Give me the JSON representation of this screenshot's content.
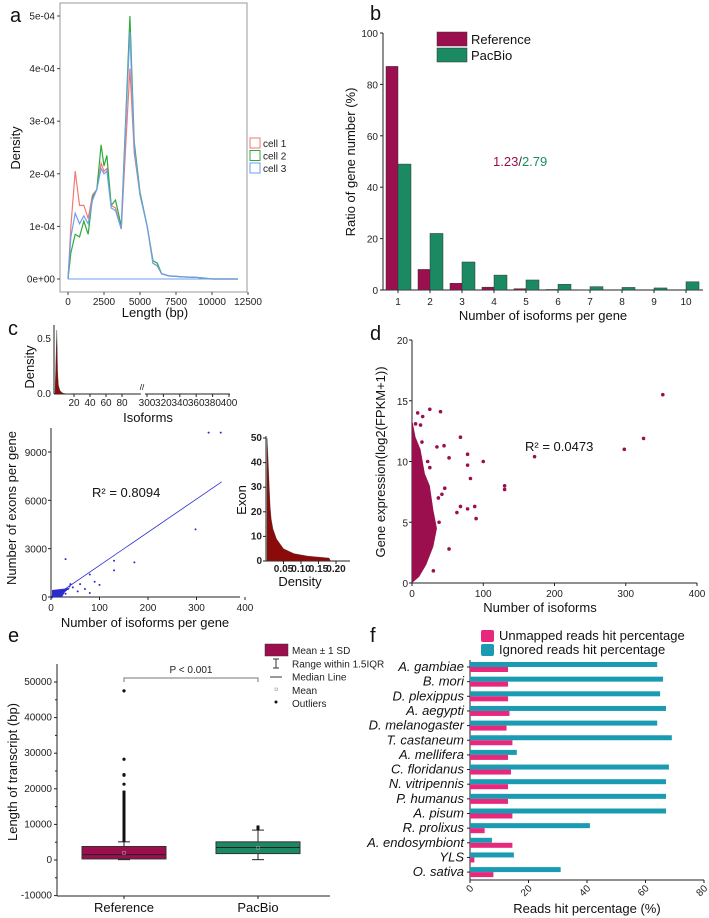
{
  "colors": {
    "reference": "#9c0f4f",
    "pacbio": "#1b8a62",
    "cell1": "#f07a72",
    "cell2": "#2faa3c",
    "cell3": "#6f9ef0",
    "scatter_blue": "#2b2bd0",
    "hist_red": "#8b0a0a",
    "unmapped": "#e8287c",
    "ignored": "#1b9bb2"
  },
  "chart_data": [
    {
      "panel": "a",
      "type": "line",
      "xlabel": "Length (bp)",
      "ylabel": "Density",
      "xlim": [
        0,
        12500
      ],
      "ylim": [
        0,
        0.0005
      ],
      "xticks": [
        "0",
        "2500",
        "5000",
        "7500",
        "10000",
        "12500"
      ],
      "yticks": [
        "0e+00",
        "1e-04",
        "2e-04",
        "3e-04",
        "4e-04",
        "5e-04"
      ],
      "legend_position": "right",
      "series": [
        {
          "name": "cell 1",
          "color": "#f07a72",
          "points": [
            [
              0,
              0
            ],
            [
              200,
              0.0001
            ],
            [
              500,
              0.000205
            ],
            [
              800,
              0.00014
            ],
            [
              1100,
              0.00014
            ],
            [
              1400,
              0.000115
            ],
            [
              1700,
              0.00016
            ],
            [
              2000,
              0.00017
            ],
            [
              2300,
              0.00022
            ],
            [
              2500,
              0.000205
            ],
            [
              2700,
              0.00021
            ],
            [
              3000,
              0.00014
            ],
            [
              3300,
              0.000135
            ],
            [
              3700,
              9.5e-05
            ],
            [
              4000,
              0.00025
            ],
            [
              4300,
              0.0004
            ],
            [
              4600,
              0.00024
            ],
            [
              5000,
              0.00016
            ],
            [
              5500,
              0.0001
            ],
            [
              5900,
              3e-05
            ],
            [
              6200,
              2.5e-05
            ],
            [
              6500,
              1e-05
            ],
            [
              7000,
              6e-06
            ],
            [
              8000,
              4e-06
            ],
            [
              9000,
              3e-06
            ],
            [
              10000,
              0
            ],
            [
              11800,
              0
            ]
          ]
        },
        {
          "name": "cell 2",
          "color": "#2faa3c",
          "points": [
            [
              0,
              0
            ],
            [
              200,
              5e-05
            ],
            [
              500,
              8.5e-05
            ],
            [
              800,
              8e-05
            ],
            [
              1100,
              0.00011
            ],
            [
              1400,
              8.5e-05
            ],
            [
              1700,
              0.000155
            ],
            [
              2000,
              0.00017
            ],
            [
              2300,
              0.000255
            ],
            [
              2500,
              0.000215
            ],
            [
              2700,
              0.000235
            ],
            [
              3000,
              0.00014
            ],
            [
              3300,
              0.00015
            ],
            [
              3700,
              0.0001
            ],
            [
              4000,
              0.0003
            ],
            [
              4300,
              0.0005
            ],
            [
              4600,
              0.00026
            ],
            [
              5000,
              0.000165
            ],
            [
              5500,
              0.0001
            ],
            [
              5900,
              3.5e-05
            ],
            [
              6200,
              3e-05
            ],
            [
              6500,
              1e-05
            ],
            [
              7000,
              6e-06
            ],
            [
              8000,
              4e-06
            ],
            [
              9000,
              3e-06
            ],
            [
              10000,
              0
            ],
            [
              11800,
              0
            ]
          ]
        },
        {
          "name": "cell 3",
          "color": "#6f9ef0",
          "points": [
            [
              0,
              0
            ],
            [
              200,
              8e-05
            ],
            [
              500,
              0.000125
            ],
            [
              800,
              0.000105
            ],
            [
              1100,
              0.00012
            ],
            [
              1400,
              0.000105
            ],
            [
              1700,
              0.00015
            ],
            [
              2000,
              0.00017
            ],
            [
              2300,
              0.00021
            ],
            [
              2500,
              0.0002
            ],
            [
              2700,
              0.000205
            ],
            [
              3000,
              0.000135
            ],
            [
              3300,
              0.00013
            ],
            [
              3700,
              9.5e-05
            ],
            [
              4000,
              0.00029
            ],
            [
              4300,
              0.00047
            ],
            [
              4600,
              0.00025
            ],
            [
              5000,
              0.00016
            ],
            [
              5500,
              0.0001
            ],
            [
              5900,
              3e-05
            ],
            [
              6200,
              2.5e-05
            ],
            [
              6500,
              1e-05
            ],
            [
              7000,
              6e-06
            ],
            [
              8000,
              4e-06
            ],
            [
              9000,
              3e-06
            ],
            [
              10000,
              0
            ],
            [
              11800,
              0
            ]
          ]
        }
      ]
    },
    {
      "panel": "b",
      "type": "bar",
      "xlabel": "Number of isoforms per gene",
      "ylabel": "Ratio of gene number (%)",
      "ylim": [
        0,
        100
      ],
      "yticks": [
        "0",
        "20",
        "40",
        "60",
        "80",
        "100"
      ],
      "categories": [
        "1",
        "2",
        "3",
        "4",
        "5",
        "6",
        "7",
        "8",
        "9",
        "10"
      ],
      "legend_position": "top",
      "annotation_ref": "1.23",
      "annotation_sep": "/",
      "annotation_pacbio": "2.79",
      "series": [
        {
          "name": "Reference",
          "values": [
            87,
            8,
            2.6,
            1.1,
            0.5,
            0.2,
            0.1,
            0,
            0,
            0
          ]
        },
        {
          "name": "PacBio",
          "values": [
            49,
            22,
            10.9,
            5.8,
            3.9,
            2.2,
            1.3,
            1.0,
            0.8,
            3.2
          ]
        }
      ]
    },
    {
      "panel": "c",
      "type": "area",
      "xlabel": "Isoforms",
      "ylabel": "Density",
      "yticks": [
        "0.0",
        "0.5"
      ],
      "xticks_left": [
        "20",
        "40",
        "60",
        "80"
      ],
      "xticks_right": [
        "300",
        "320",
        "340",
        "360",
        "380",
        "400"
      ],
      "axis_break": "//",
      "points": [
        [
          1,
          0.58
        ],
        [
          2,
          0.2
        ],
        [
          3,
          0.08
        ],
        [
          5,
          0.03
        ],
        [
          8,
          0.01
        ],
        [
          10,
          0.005
        ],
        [
          15,
          0
        ]
      ]
    },
    {
      "panel": "c",
      "type": "scatter",
      "xlabel": "Number of isoforms per gene",
      "ylabel": "Number of exons per gene",
      "xlim": [
        0,
        400
      ],
      "ylim": [
        0,
        10500
      ],
      "xticks": [
        "0",
        "100",
        "200",
        "300",
        "400"
      ],
      "yticks": [
        "0",
        "3000",
        "6000",
        "9000"
      ],
      "annotation": "R² = 0.8094",
      "fit_line": [
        [
          0,
          -100
        ],
        [
          352,
          7150
        ]
      ],
      "points": [
        [
          325,
          10200
        ],
        [
          350,
          10200
        ],
        [
          298,
          4200
        ],
        [
          30,
          2350
        ],
        [
          130,
          2250
        ],
        [
          130,
          1650
        ],
        [
          172,
          2150
        ],
        [
          80,
          1400
        ],
        [
          90,
          950
        ],
        [
          100,
          750
        ],
        [
          60,
          800
        ],
        [
          70,
          500
        ],
        [
          80,
          250
        ],
        [
          45,
          600
        ],
        [
          40,
          800
        ],
        [
          55,
          350
        ],
        [
          20,
          400
        ],
        [
          25,
          300
        ],
        [
          15,
          200
        ],
        [
          10,
          150
        ],
        [
          5,
          100
        ],
        [
          30,
          200
        ],
        [
          35,
          500
        ],
        [
          12,
          60
        ],
        [
          3,
          30
        ],
        [
          18,
          120
        ],
        [
          28,
          420
        ],
        [
          38,
          650
        ]
      ]
    },
    {
      "panel": "c",
      "type": "area",
      "xlabel": "Density",
      "ylabel": "Exon",
      "xlim": [
        0,
        0.2
      ],
      "ylim": [
        0,
        50
      ],
      "xticks": [
        "0.05",
        "0.10",
        "0.15",
        "0.20"
      ],
      "yticks": [
        "0",
        "10",
        "20",
        "30",
        "40",
        "50"
      ],
      "points": [
        [
          0.003,
          50
        ],
        [
          0.005,
          45
        ],
        [
          0.008,
          35
        ],
        [
          0.01,
          28
        ],
        [
          0.012,
          22
        ],
        [
          0.015,
          17
        ],
        [
          0.02,
          13
        ],
        [
          0.03,
          9
        ],
        [
          0.05,
          5
        ],
        [
          0.08,
          3
        ],
        [
          0.12,
          2
        ],
        [
          0.18,
          1.2
        ],
        [
          0.185,
          0
        ]
      ]
    },
    {
      "panel": "d",
      "type": "scatter",
      "xlabel": "Number of isoforms",
      "ylabel": "Gene expression(log2(FPKM+1))",
      "xlim": [
        0,
        400
      ],
      "ylim": [
        0,
        20
      ],
      "xticks": [
        "0",
        "100",
        "200",
        "300",
        "400"
      ],
      "yticks": [
        "0",
        "5",
        "10",
        "15",
        "20"
      ],
      "annotation": "R² = 0.0473",
      "dense_region": [
        [
          0,
          0
        ],
        [
          0,
          13.5
        ],
        [
          5,
          12
        ],
        [
          12,
          11
        ],
        [
          18,
          9
        ],
        [
          25,
          8
        ],
        [
          30,
          6
        ],
        [
          35,
          4.5
        ],
        [
          30,
          3
        ],
        [
          20,
          1.5
        ],
        [
          10,
          0.5
        ]
      ],
      "points": [
        [
          352,
          15.5
        ],
        [
          325,
          11.9
        ],
        [
          298,
          11
        ],
        [
          172,
          10.4
        ],
        [
          130,
          8
        ],
        [
          130,
          7.7
        ],
        [
          100,
          10
        ],
        [
          78,
          10.6
        ],
        [
          78,
          9.7
        ],
        [
          68,
          12
        ],
        [
          82,
          8.6
        ],
        [
          88,
          6.3
        ],
        [
          90,
          5.3
        ],
        [
          78,
          6.1
        ],
        [
          68,
          6.3
        ],
        [
          63,
          5.8
        ],
        [
          52,
          2.8
        ],
        [
          52,
          10.3
        ],
        [
          45,
          11.3
        ],
        [
          35,
          11.2
        ],
        [
          40,
          14.1
        ],
        [
          25,
          14.3
        ],
        [
          8,
          14
        ],
        [
          15,
          13.7
        ],
        [
          46,
          7.8
        ],
        [
          37,
          7
        ],
        [
          42,
          7.3
        ],
        [
          38,
          5
        ],
        [
          30,
          1
        ],
        [
          22,
          10
        ],
        [
          25,
          9.5
        ],
        [
          5,
          13.1
        ],
        [
          12,
          13
        ],
        [
          14,
          11.6
        ]
      ]
    },
    {
      "panel": "e",
      "type": "box",
      "ylabel": "Length of transcript (bp)",
      "ylim": [
        -10000,
        55000
      ],
      "yticks": [
        "-10000",
        "0",
        "10000",
        "20000",
        "30000",
        "40000",
        "50000"
      ],
      "categories": [
        "Reference",
        "PacBio"
      ],
      "significance": "P < 0.001",
      "legend": [
        "Mean ± 1 SD",
        "Range within 1.5IQR",
        "Median Line",
        "Mean",
        "Outliers"
      ],
      "boxes": [
        {
          "name": "Reference",
          "box": [
            300,
            3800
          ],
          "median": 1500,
          "mean": 2000,
          "whisker": [
            100,
            5100
          ],
          "outlier_band": [
            5100,
            19500
          ],
          "outliers": [
            47500,
            28300,
            24000,
            23800,
            21300
          ]
        },
        {
          "name": "PacBio",
          "box": [
            1800,
            5100
          ],
          "median": 3500,
          "mean": 3400,
          "whisker": [
            100,
            8400
          ],
          "outlier_band": [
            8400,
            9700
          ],
          "outliers": []
        }
      ]
    },
    {
      "panel": "f",
      "type": "bar",
      "orientation": "horizontal",
      "xlabel": "Reads hit percentage (%)",
      "xlim": [
        0,
        80
      ],
      "xticks": [
        "0",
        "20",
        "40",
        "60",
        "80"
      ],
      "legend_position": "top",
      "categories": [
        "A. gambiae",
        "B. mori",
        "D. plexippus",
        "A. aegypti",
        "D. melanogaster",
        "T. castaneum",
        "A. mellifera",
        "C. floridanus",
        "N. vitripennis",
        "P. humanus",
        "A. pisum",
        "R. prolixus",
        "A. endosymbiont",
        "YLS",
        "O. sativa"
      ],
      "series": [
        {
          "name": "Unmapped reads hit percentage",
          "values": [
            13,
            13,
            13,
            13.5,
            12.5,
            14.5,
            13,
            14,
            13,
            13,
            14.5,
            5,
            14.5,
            1.5,
            8
          ]
        },
        {
          "name": "Ignored reads hit percentage",
          "values": [
            64,
            66,
            65,
            67,
            64,
            69,
            16,
            68,
            67,
            67,
            67,
            41,
            7.5,
            15,
            31
          ]
        }
      ]
    }
  ]
}
